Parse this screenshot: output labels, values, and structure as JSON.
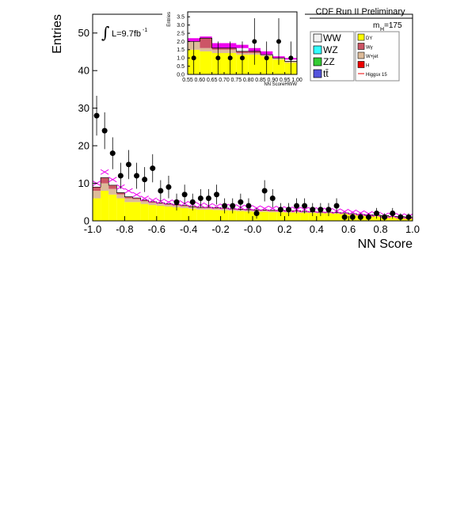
{
  "header": {
    "title": "CDF Run II Preliminary",
    "lumi": "L=9.7fb",
    "lumi_exp": "-1",
    "mass_label": "m",
    "mass_sub": "H",
    "mass_value": "=175"
  },
  "legend": {
    "left": [
      {
        "label": "WW",
        "color": "#f2f2f2"
      },
      {
        "label": "WZ",
        "color": "#33ffff"
      },
      {
        "label": "ZZ",
        "color": "#33cc33"
      },
      {
        "label": "tt̄",
        "color": "#5555dd"
      }
    ],
    "right": [
      {
        "label": "DY",
        "color": "#ffff00"
      },
      {
        "label": "Wγ",
        "color": "#cc5566"
      },
      {
        "label": "W+jet",
        "color": "#ddbb99"
      },
      {
        "label": "H",
        "color": "#ee0000"
      },
      {
        "label": "Higgsx 15",
        "color": "#ee0000",
        "line": true
      }
    ]
  },
  "chart_data": [
    {
      "type": "bar",
      "xlabel": "NN Score",
      "ylabel": "Entries",
      "xlim": [
        -1.0,
        1.0
      ],
      "ylim": [
        0,
        55
      ],
      "xticks": [
        "-1.0",
        "-0.8",
        "-0.6",
        "-0.4",
        "-0.2",
        "-0.0",
        "0.2",
        "0.4",
        "0.6",
        "0.8",
        "1.0"
      ],
      "yticks": [
        "0",
        "10",
        "20",
        "30",
        "40",
        "50"
      ],
      "bin_edges": [
        -1.0,
        -0.95,
        -0.9,
        -0.85,
        -0.8,
        -0.75,
        -0.7,
        -0.65,
        -0.6,
        -0.55,
        -0.5,
        -0.45,
        -0.4,
        -0.35,
        -0.3,
        -0.25,
        -0.2,
        -0.15,
        -0.1,
        -0.05,
        0.0,
        0.05,
        0.1,
        0.15,
        0.2,
        0.25,
        0.3,
        0.35,
        0.4,
        0.45,
        0.5,
        0.55,
        0.6,
        0.65,
        0.7,
        0.75,
        0.8,
        0.85,
        0.9,
        0.95,
        1.0
      ],
      "series": [
        {
          "name": "DY",
          "color": "#ffff00",
          "values": [
            6,
            8,
            7,
            6,
            5,
            5,
            4.5,
            4.2,
            4,
            3.8,
            3.6,
            3.4,
            3.2,
            3,
            3,
            2.9,
            2.8,
            2.7,
            2.6,
            2.5,
            2.4,
            2.4,
            2.3,
            2.3,
            2.2,
            2.2,
            2.1,
            2.1,
            2,
            2,
            1.9,
            1.8,
            1.6,
            1.4,
            1.3,
            1.2,
            1.1,
            1,
            0.9,
            0.8
          ]
        },
        {
          "name": "W+jet",
          "color": "#ddbb99",
          "values": [
            2,
            2,
            1.5,
            1,
            1,
            0.8,
            0.7,
            0.6,
            0.6,
            0.5,
            0.5,
            0.5,
            0.4,
            0.4,
            0.4,
            0.4,
            0.4,
            0.3,
            0.3,
            0.3,
            0.3,
            0.3,
            0.3,
            0.3,
            0.3,
            0.3,
            0.3,
            0.2,
            0.2,
            0.2,
            0.2,
            0.2,
            0.2,
            0.2,
            0.2,
            0.2,
            0.2,
            0.1,
            0.1,
            0.1
          ]
        },
        {
          "name": "Wγ",
          "color": "#cc5566",
          "values": [
            1,
            1.5,
            1,
            0.5,
            0.4,
            0.3,
            0.3,
            0.3,
            0.2,
            0.2,
            0.2,
            0.2,
            0.2,
            0.2,
            0.2,
            0.2,
            0.2,
            0.2,
            0.2,
            0.2,
            0.2,
            0.2,
            0.2,
            0.2,
            0.2,
            0.2,
            0.1,
            0.1,
            0.1,
            0.1,
            0.1,
            0.1,
            0.1,
            0.1,
            0.1,
            0.1,
            0.1,
            0.1,
            0.1,
            0.1
          ]
        }
      ],
      "signal_x15": [
        10,
        13,
        11,
        9,
        8,
        7,
        6,
        5.5,
        5.2,
        5,
        4.8,
        4.6,
        4.4,
        4.2,
        4,
        3.9,
        3.8,
        3.7,
        3.6,
        3.5,
        3.4,
        3.3,
        3.3,
        3.2,
        3.1,
        3,
        3,
        2.9,
        2.8,
        2.7,
        2.6,
        2.5,
        2.3,
        2.1,
        1.9,
        1.7,
        1.5,
        1.4,
        1.3,
        1.2
      ],
      "data_points": {
        "x": [
          -0.975,
          -0.925,
          -0.875,
          -0.825,
          -0.775,
          -0.725,
          -0.675,
          -0.625,
          -0.575,
          -0.525,
          -0.475,
          -0.425,
          -0.375,
          -0.325,
          -0.275,
          -0.225,
          -0.175,
          -0.125,
          -0.075,
          -0.025,
          0.025,
          0.075,
          0.125,
          0.175,
          0.225,
          0.275,
          0.325,
          0.375,
          0.425,
          0.475,
          0.525,
          0.575,
          0.625,
          0.675,
          0.725,
          0.775,
          0.825,
          0.875,
          0.925,
          0.975
        ],
        "y": [
          28,
          24,
          18,
          12,
          15,
          12,
          11,
          14,
          8,
          9,
          5,
          7,
          5,
          6,
          6,
          7,
          4,
          4,
          5,
          4,
          2,
          8,
          6,
          3,
          3,
          4,
          4,
          3,
          3,
          3,
          4,
          1,
          1,
          1,
          1,
          2,
          1,
          2,
          1,
          1
        ]
      }
    },
    {
      "type": "bar",
      "xlabel": "NN ScoreHWW",
      "ylabel": "Entries",
      "xlim": [
        0.55,
        1.0
      ],
      "ylim": [
        0,
        3.8
      ],
      "xticks": [
        "0.55",
        "0.60",
        "0.65",
        "0.70",
        "0.75",
        "0.80",
        "0.85",
        "0.90",
        "0.95",
        "1.00"
      ],
      "yticks": [
        "0.0",
        "0.5",
        "1.0",
        "1.5",
        "2.0",
        "2.5",
        "3.0",
        "3.5"
      ],
      "bin_edges": [
        0.55,
        0.6,
        0.65,
        0.7,
        0.75,
        0.8,
        0.85,
        0.9,
        0.95,
        1.0
      ],
      "series": [
        {
          "name": "DY",
          "color": "#ffff00",
          "values": [
            1.5,
            1.4,
            1.3,
            1.3,
            1.2,
            1.2,
            1.1,
            0.9,
            0.7
          ]
        },
        {
          "name": "W+jet",
          "color": "#ddbb99",
          "values": [
            0.5,
            0.2,
            0.2,
            0.2,
            0.1,
            0.1,
            0.1,
            0.1,
            0.1
          ]
        },
        {
          "name": "Wγ",
          "color": "#cc5566",
          "values": [
            0,
            0.6,
            0.1,
            0.1,
            0.1,
            0.1,
            0,
            0,
            0
          ]
        }
      ],
      "signal_band": {
        "lower": [
          2.0,
          2.1,
          1.6,
          1.6,
          1.6,
          1.4,
          1.2,
          1.0,
          0.9
        ],
        "upper": [
          2.2,
          2.3,
          1.9,
          1.9,
          1.8,
          1.6,
          1.4,
          1.1,
          1.0
        ]
      },
      "data_points": {
        "x": [
          0.575,
          0.625,
          0.675,
          0.725,
          0.775,
          0.825,
          0.875,
          0.925,
          0.975
        ],
        "y": [
          1,
          0,
          1,
          1,
          1,
          2,
          1,
          2,
          1
        ]
      }
    }
  ]
}
